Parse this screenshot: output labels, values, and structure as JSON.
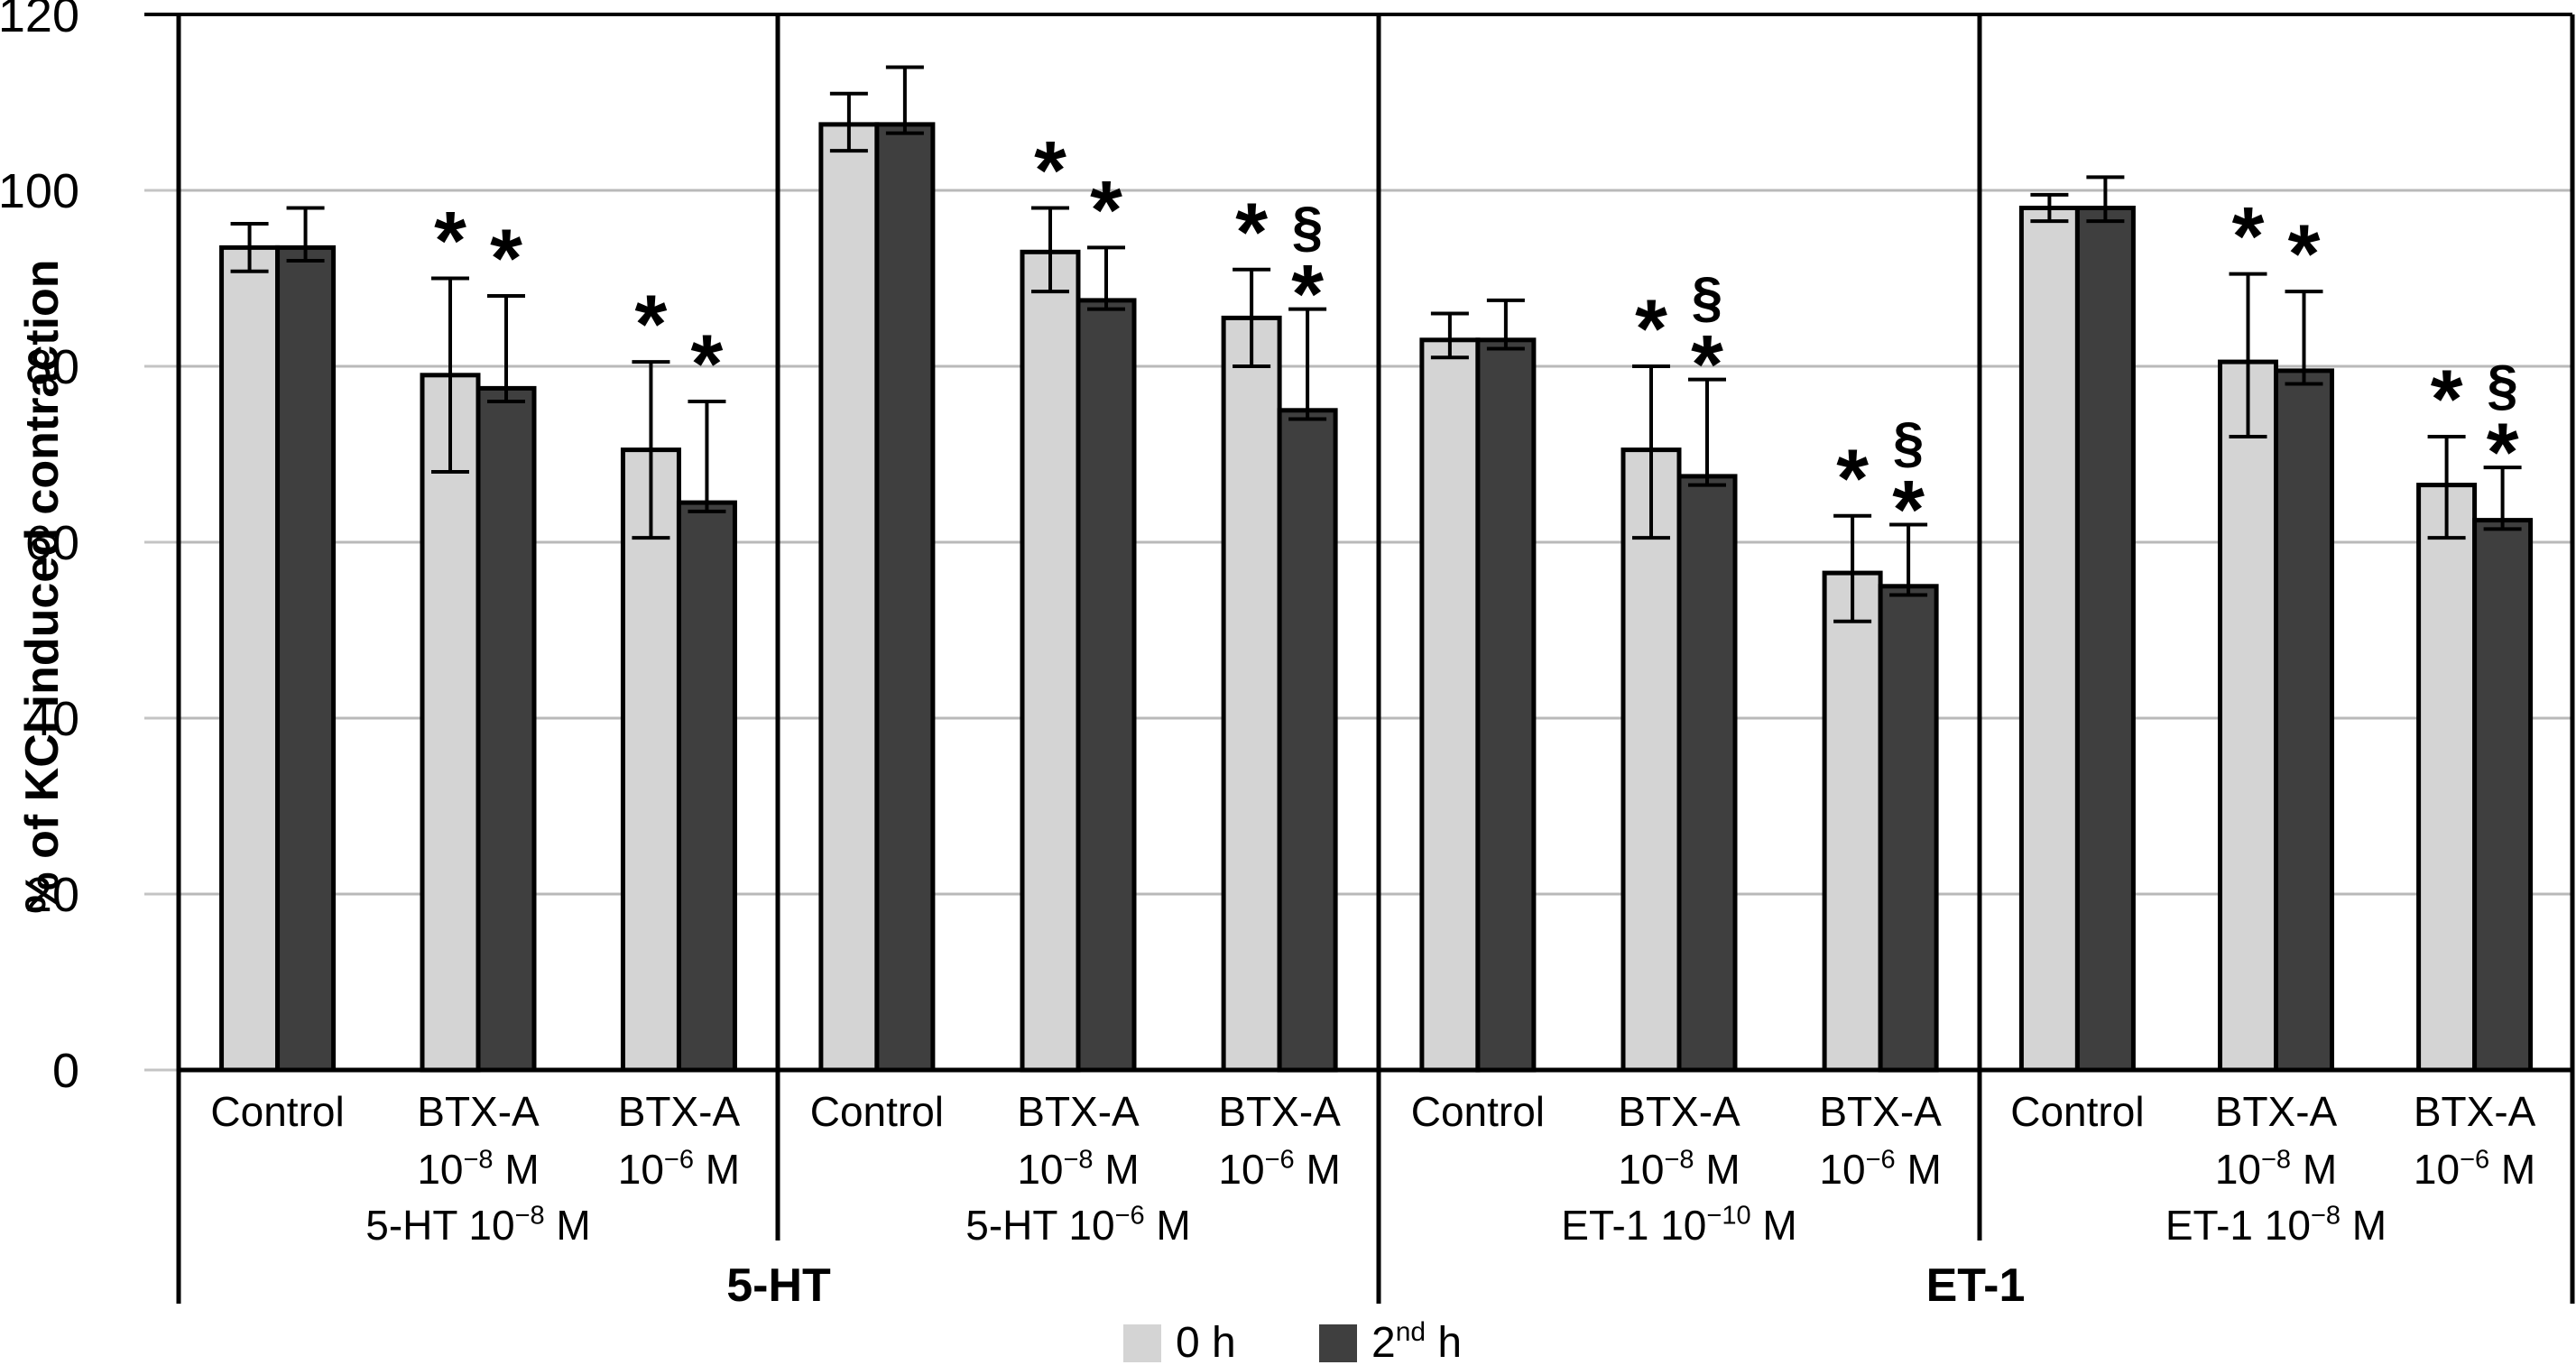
{
  "chart_data": {
    "type": "bar",
    "title": "",
    "ylabel": "% of KCl induced contraction",
    "xlabel": "",
    "ylim": [
      0,
      120
    ],
    "grid": true,
    "legend_position": "bottom-center",
    "axis": {
      "yticks": [
        0,
        20,
        40,
        60,
        80,
        100,
        120
      ]
    },
    "series": [
      {
        "name": "0 h",
        "color": "#d4d4d4"
      },
      {
        "name": "2^{nd} h",
        "color": "#3f3f3f"
      }
    ],
    "annotation_symbols": [
      "*",
      "§"
    ],
    "sections": [
      {
        "label": "5-HT",
        "panels": [
          {
            "treatment_label": "5-HT 10^{−8} M",
            "groups": [
              {
                "label_lines": [
                  "Control"
                ],
                "bars": [
                  {
                    "series": "0 h",
                    "value": 93.5,
                    "err_up": 2.7,
                    "err_down": 2.7,
                    "annotations": []
                  },
                  {
                    "series": "2^{nd} h",
                    "value": 93.5,
                    "err_up": 4.5,
                    "err_down": 1.5,
                    "annotations": []
                  }
                ]
              },
              {
                "label_lines": [
                  "BTX-A",
                  "10^{−8} M"
                ],
                "bars": [
                  {
                    "series": "0 h",
                    "value": 79,
                    "err_up": 11,
                    "err_down": 11,
                    "annotations": [
                      "*"
                    ]
                  },
                  {
                    "series": "2^{nd} h",
                    "value": 77.5,
                    "err_up": 10.5,
                    "err_down": 1.5,
                    "annotations": [
                      "*"
                    ]
                  }
                ]
              },
              {
                "label_lines": [
                  "BTX-A",
                  "10^{−6} M"
                ],
                "bars": [
                  {
                    "series": "0 h",
                    "value": 70.5,
                    "err_up": 10,
                    "err_down": 10,
                    "annotations": [
                      "*"
                    ]
                  },
                  {
                    "series": "2^{nd} h",
                    "value": 64.5,
                    "err_up": 11.5,
                    "err_down": 1,
                    "annotations": [
                      "*"
                    ]
                  }
                ]
              }
            ]
          },
          {
            "treatment_label": "5-HT 10^{−6} M",
            "groups": [
              {
                "label_lines": [
                  "Control"
                ],
                "bars": [
                  {
                    "series": "0 h",
                    "value": 107.5,
                    "err_up": 3.5,
                    "err_down": 3,
                    "annotations": []
                  },
                  {
                    "series": "2^{nd} h",
                    "value": 107.5,
                    "err_up": 6.5,
                    "err_down": 1,
                    "annotations": []
                  }
                ]
              },
              {
                "label_lines": [
                  "BTX-A",
                  "10^{−8} M"
                ],
                "bars": [
                  {
                    "series": "0 h",
                    "value": 93,
                    "err_up": 5,
                    "err_down": 4.5,
                    "annotations": [
                      "*"
                    ]
                  },
                  {
                    "series": "2^{nd} h",
                    "value": 87.5,
                    "err_up": 6,
                    "err_down": 1,
                    "annotations": [
                      "*"
                    ]
                  }
                ]
              },
              {
                "label_lines": [
                  "BTX-A",
                  "10^{−6} M"
                ],
                "bars": [
                  {
                    "series": "0 h",
                    "value": 85.5,
                    "err_up": 5.5,
                    "err_down": 5.5,
                    "annotations": [
                      "*"
                    ]
                  },
                  {
                    "series": "2^{nd} h",
                    "value": 75,
                    "err_up": 11.5,
                    "err_down": 1,
                    "annotations": [
                      "*",
                      "§"
                    ]
                  }
                ]
              }
            ]
          }
        ]
      },
      {
        "label": "ET-1",
        "panels": [
          {
            "treatment_label": "ET-1 10^{−10} M",
            "groups": [
              {
                "label_lines": [
                  "Control"
                ],
                "bars": [
                  {
                    "series": "0 h",
                    "value": 83,
                    "err_up": 3,
                    "err_down": 2,
                    "annotations": []
                  },
                  {
                    "series": "2^{nd} h",
                    "value": 83,
                    "err_up": 4.5,
                    "err_down": 1,
                    "annotations": []
                  }
                ]
              },
              {
                "label_lines": [
                  "BTX-A",
                  "10^{−8} M"
                ],
                "bars": [
                  {
                    "series": "0 h",
                    "value": 70.5,
                    "err_up": 9.5,
                    "err_down": 10,
                    "annotations": [
                      "*"
                    ]
                  },
                  {
                    "series": "2^{nd} h",
                    "value": 67.5,
                    "err_up": 11,
                    "err_down": 1,
                    "annotations": [
                      "*",
                      "§"
                    ]
                  }
                ]
              },
              {
                "label_lines": [
                  "BTX-A",
                  "10^{−6} M"
                ],
                "bars": [
                  {
                    "series": "0 h",
                    "value": 56.5,
                    "err_up": 6.5,
                    "err_down": 5.5,
                    "annotations": [
                      "*"
                    ]
                  },
                  {
                    "series": "2^{nd} h",
                    "value": 55,
                    "err_up": 7,
                    "err_down": 1,
                    "annotations": [
                      "*",
                      "§"
                    ]
                  }
                ]
              }
            ]
          },
          {
            "treatment_label": "ET-1 10^{−8} M",
            "groups": [
              {
                "label_lines": [
                  "Control"
                ],
                "bars": [
                  {
                    "series": "0 h",
                    "value": 98,
                    "err_up": 1.5,
                    "err_down": 1.5,
                    "annotations": []
                  },
                  {
                    "series": "2^{nd} h",
                    "value": 98,
                    "err_up": 3.5,
                    "err_down": 1.5,
                    "annotations": []
                  }
                ]
              },
              {
                "label_lines": [
                  "BTX-A",
                  "10^{−8} M"
                ],
                "bars": [
                  {
                    "series": "0 h",
                    "value": 80.5,
                    "err_up": 10,
                    "err_down": 8.5,
                    "annotations": [
                      "*"
                    ]
                  },
                  {
                    "series": "2^{nd} h",
                    "value": 79.5,
                    "err_up": 9,
                    "err_down": 1.5,
                    "annotations": [
                      "*"
                    ]
                  }
                ]
              },
              {
                "label_lines": [
                  "BTX-A",
                  "10^{−6} M"
                ],
                "bars": [
                  {
                    "series": "0 h",
                    "value": 66.5,
                    "err_up": 5.5,
                    "err_down": 6,
                    "annotations": [
                      "*"
                    ]
                  },
                  {
                    "series": "2^{nd} h",
                    "value": 62.5,
                    "err_up": 6,
                    "err_down": 1,
                    "annotations": [
                      "*",
                      "§"
                    ]
                  }
                ]
              }
            ]
          }
        ]
      }
    ],
    "colors": {
      "bar_light": "#d4d4d4",
      "bar_dark": "#3f3f3f",
      "bar_outline": "#000000",
      "gridline": "#b9b9b9",
      "axis": "#000000"
    }
  }
}
